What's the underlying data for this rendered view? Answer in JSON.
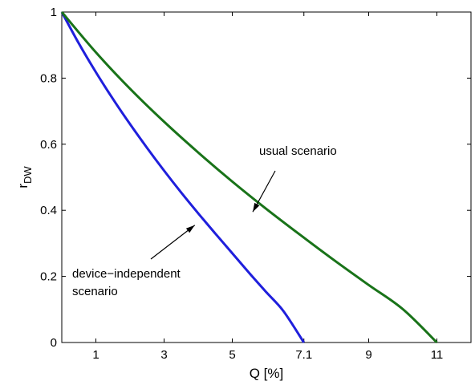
{
  "chart_data": {
    "type": "line",
    "xlabel": "Q [%]",
    "ylabel_main": "r",
    "ylabel_sub": "DW",
    "xlim": [
      0,
      12
    ],
    "ylim": [
      0,
      1
    ],
    "x_ticks": [
      1,
      3,
      5,
      7.1,
      9,
      11
    ],
    "x_tick_labels": [
      "1",
      "3",
      "5",
      "7.1",
      "9",
      "11"
    ],
    "y_ticks": [
      0,
      0.2,
      0.4,
      0.6,
      0.8,
      1
    ],
    "y_tick_labels": [
      "0",
      "0.2",
      "0.4",
      "0.6",
      "0.8",
      "1"
    ],
    "grid": false,
    "series": [
      {
        "color": "#1f1fdc",
        "x": [
          0,
          0.5,
          1,
          1.5,
          2,
          2.5,
          3,
          3.5,
          4,
          4.5,
          5,
          5.5,
          6,
          6.5,
          7.1
        ],
        "values": [
          1.0,
          0.905,
          0.818,
          0.737,
          0.661,
          0.589,
          0.52,
          0.454,
          0.391,
          0.33,
          0.27,
          0.21,
          0.152,
          0.095,
          0.0
        ]
      },
      {
        "color": "#197319",
        "x": [
          0,
          1,
          2,
          3,
          4,
          5,
          6,
          7,
          8,
          9,
          10,
          11
        ],
        "values": [
          1.0,
          0.878,
          0.768,
          0.668,
          0.575,
          0.487,
          0.404,
          0.325,
          0.248,
          0.174,
          0.101,
          0.0
        ]
      }
    ],
    "annotations": [
      {
        "text_lines": [
          "usual scenario"
        ],
        "points_to": [
          5.6,
          0.395
        ]
      },
      {
        "text_lines": [
          "device−independent",
          "scenario"
        ],
        "points_to": [
          3.9,
          0.355
        ]
      }
    ]
  }
}
